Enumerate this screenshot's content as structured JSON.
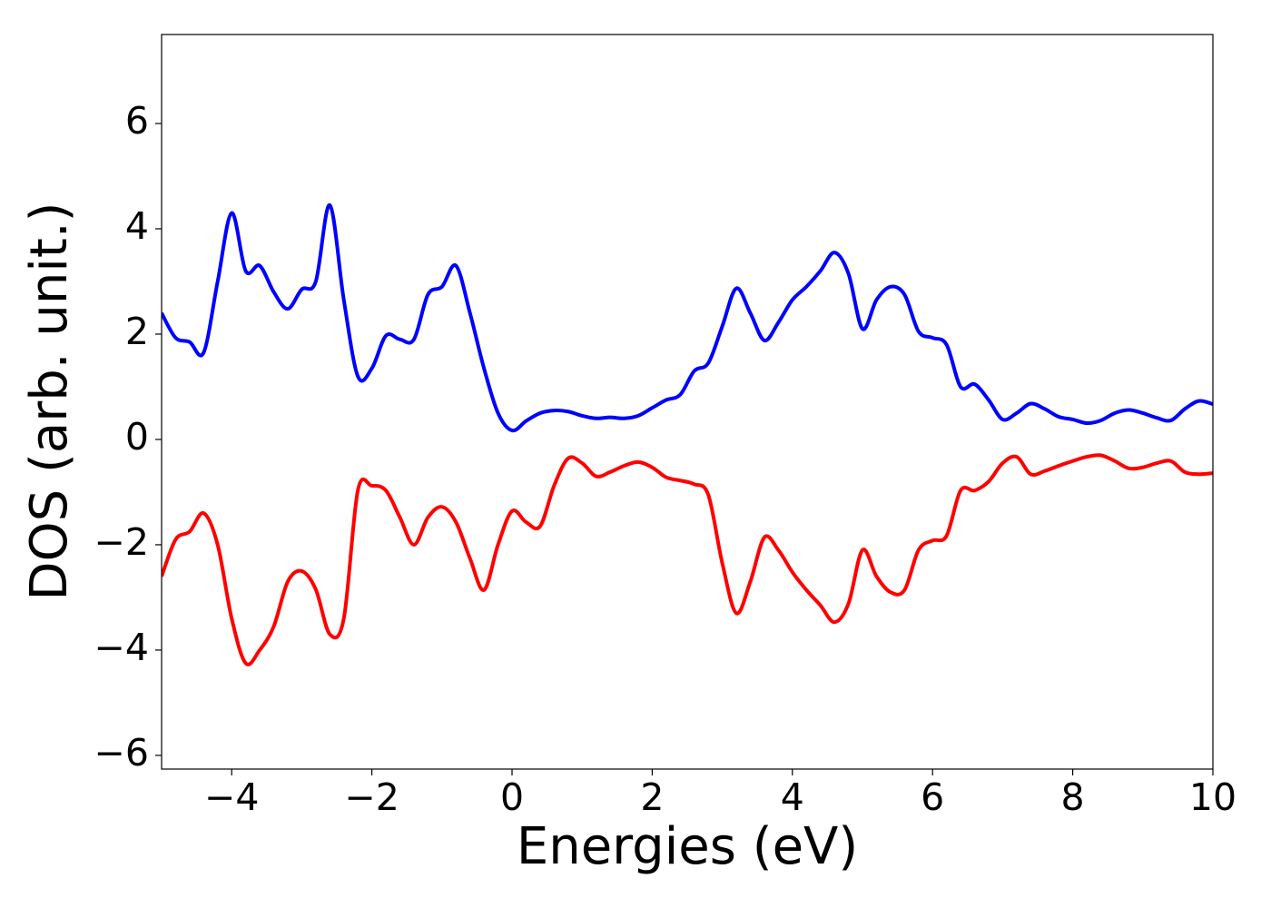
{
  "chart_data": {
    "type": "line",
    "xlabel": "Energies (eV)",
    "ylabel": "DOS (arb. unit.)",
    "x": [
      -5,
      -4.8,
      -4.6,
      -4.4,
      -4.2,
      -4,
      -3.8,
      -3.6,
      -3.4,
      -3.2,
      -3,
      -2.8,
      -2.6,
      -2.4,
      -2.2,
      -2,
      -1.8,
      -1.6,
      -1.4,
      -1.2,
      -1,
      -0.8,
      -0.6,
      -0.4,
      -0.2,
      0,
      0.2,
      0.4,
      0.6,
      0.8,
      1,
      1.2,
      1.4,
      1.6,
      1.8,
      2,
      2.2,
      2.4,
      2.6,
      2.8,
      3,
      3.2,
      3.4,
      3.6,
      3.8,
      4,
      4.2,
      4.4,
      4.6,
      4.8,
      5,
      5.2,
      5.4,
      5.6,
      5.8,
      6,
      6.2,
      6.4,
      6.6,
      6.8,
      7,
      7.2,
      7.4,
      7.6,
      7.8,
      8,
      8.2,
      8.4,
      8.6,
      8.8,
      9,
      9.2,
      9.4,
      9.6,
      9.8,
      10
    ],
    "series": [
      {
        "color": "#0000ff",
        "values": [
          2.4,
          1.93,
          1.85,
          1.65,
          3.0,
          4.3,
          3.2,
          3.3,
          2.8,
          2.48,
          2.85,
          3.0,
          4.45,
          2.65,
          1.2,
          1.35,
          1.97,
          1.9,
          1.9,
          2.75,
          2.9,
          3.3,
          2.4,
          1.35,
          0.5,
          0.17,
          0.35,
          0.5,
          0.55,
          0.53,
          0.45,
          0.4,
          0.42,
          0.4,
          0.45,
          0.6,
          0.75,
          0.85,
          1.3,
          1.45,
          2.15,
          2.87,
          2.4,
          1.88,
          2.22,
          2.65,
          2.9,
          3.2,
          3.55,
          3.15,
          2.1,
          2.65,
          2.9,
          2.75,
          2.05,
          1.93,
          1.8,
          1.0,
          1.05,
          0.75,
          0.38,
          0.5,
          0.68,
          0.58,
          0.43,
          0.38,
          0.31,
          0.36,
          0.5,
          0.56,
          0.5,
          0.41,
          0.36,
          0.58,
          0.73,
          0.67
        ]
      },
      {
        "color": "#ff0000",
        "values": [
          -2.6,
          -1.9,
          -1.75,
          -1.4,
          -2.0,
          -3.4,
          -4.25,
          -4.0,
          -3.55,
          -2.7,
          -2.5,
          -2.85,
          -3.7,
          -3.4,
          -0.97,
          -0.88,
          -0.97,
          -1.48,
          -2.0,
          -1.48,
          -1.28,
          -1.57,
          -2.26,
          -2.86,
          -2.0,
          -1.36,
          -1.57,
          -1.65,
          -0.88,
          -0.36,
          -0.45,
          -0.7,
          -0.62,
          -0.5,
          -0.43,
          -0.53,
          -0.72,
          -0.78,
          -0.85,
          -1.05,
          -2.35,
          -3.3,
          -2.7,
          -1.86,
          -2.1,
          -2.52,
          -2.86,
          -3.15,
          -3.47,
          -3.12,
          -2.1,
          -2.6,
          -2.9,
          -2.86,
          -2.1,
          -1.92,
          -1.83,
          -0.97,
          -0.97,
          -0.8,
          -0.45,
          -0.33,
          -0.66,
          -0.6,
          -0.5,
          -0.41,
          -0.33,
          -0.3,
          -0.41,
          -0.55,
          -0.53,
          -0.45,
          -0.41,
          -0.62,
          -0.66,
          -0.64
        ]
      }
    ],
    "xlim": [
      -5,
      10
    ],
    "ylim": [
      -6.26,
      7.69
    ],
    "xticks": [
      {
        "value": -4,
        "label": "−4"
      },
      {
        "value": -2,
        "label": "−2"
      },
      0,
      2,
      4,
      6,
      8,
      10
    ],
    "yticks": [
      {
        "value": -6,
        "label": "−6"
      },
      {
        "value": -4,
        "label": "−4"
      },
      {
        "value": -2,
        "label": "−2"
      },
      0,
      2,
      4,
      6
    ]
  }
}
